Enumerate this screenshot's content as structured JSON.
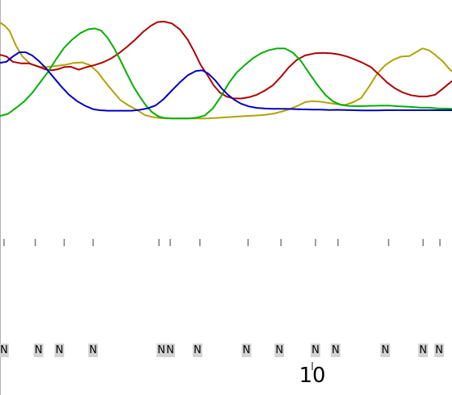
{
  "chart_data": {
    "type": "line",
    "title": "",
    "xlabel": "",
    "ylabel": "",
    "xlim": [
      0,
      563
    ],
    "ylim": [
      0,
      1000
    ],
    "grid": false,
    "legend": "none",
    "series": [
      {
        "color": "#b1a200",
        "points": [
          [
            0,
            1000
          ],
          [
            6,
            985
          ],
          [
            12,
            960
          ],
          [
            20,
            890
          ],
          [
            28,
            840
          ],
          [
            38,
            805
          ],
          [
            48,
            792
          ],
          [
            58,
            790
          ],
          [
            68,
            795
          ],
          [
            80,
            800
          ],
          [
            92,
            810
          ],
          [
            102,
            812
          ],
          [
            112,
            800
          ],
          [
            122,
            765
          ],
          [
            132,
            715
          ],
          [
            142,
            670
          ],
          [
            150,
            635
          ],
          [
            160,
            610
          ],
          [
            170,
            590
          ],
          [
            180,
            565
          ],
          [
            190,
            555
          ],
          [
            200,
            550
          ],
          [
            210,
            548
          ],
          [
            220,
            548
          ],
          [
            230,
            548
          ],
          [
            240,
            548
          ],
          [
            250,
            548
          ],
          [
            260,
            549
          ],
          [
            275,
            552
          ],
          [
            290,
            556
          ],
          [
            305,
            560
          ],
          [
            318,
            562
          ],
          [
            330,
            565
          ],
          [
            342,
            572
          ],
          [
            352,
            582
          ],
          [
            362,
            594
          ],
          [
            372,
            610
          ],
          [
            380,
            625
          ],
          [
            388,
            630
          ],
          [
            398,
            628
          ],
          [
            408,
            622
          ],
          [
            420,
            615
          ],
          [
            430,
            612
          ],
          [
            440,
            625
          ],
          [
            450,
            645
          ],
          [
            460,
            700
          ],
          [
            470,
            760
          ],
          [
            480,
            800
          ],
          [
            490,
            825
          ],
          [
            500,
            840
          ],
          [
            510,
            842
          ],
          [
            518,
            860
          ],
          [
            526,
            878
          ],
          [
            534,
            870
          ],
          [
            542,
            848
          ],
          [
            552,
            815
          ],
          [
            560,
            780
          ],
          [
            563,
            770
          ]
        ]
      },
      {
        "color": "#b00000",
        "points": [
          [
            0,
            848
          ],
          [
            8,
            840
          ],
          [
            16,
            815
          ],
          [
            26,
            808
          ],
          [
            36,
            808
          ],
          [
            46,
            795
          ],
          [
            56,
            780
          ],
          [
            64,
            775
          ],
          [
            72,
            780
          ],
          [
            80,
            790
          ],
          [
            88,
            792
          ],
          [
            98,
            778
          ],
          [
            108,
            790
          ],
          [
            118,
            800
          ],
          [
            128,
            812
          ],
          [
            138,
            830
          ],
          [
            148,
            855
          ],
          [
            158,
            885
          ],
          [
            168,
            918
          ],
          [
            178,
            955
          ],
          [
            188,
            985
          ],
          [
            196,
            1002
          ],
          [
            204,
            1005
          ],
          [
            214,
            996
          ],
          [
            224,
            968
          ],
          [
            234,
            918
          ],
          [
            242,
            862
          ],
          [
            250,
            800
          ],
          [
            258,
            755
          ],
          [
            266,
            705
          ],
          [
            274,
            670
          ],
          [
            282,
            652
          ],
          [
            290,
            643
          ],
          [
            300,
            642
          ],
          [
            310,
            648
          ],
          [
            320,
            660
          ],
          [
            330,
            680
          ],
          [
            340,
            705
          ],
          [
            350,
            745
          ],
          [
            360,
            790
          ],
          [
            370,
            825
          ],
          [
            380,
            845
          ],
          [
            392,
            855
          ],
          [
            402,
            857
          ],
          [
            412,
            855
          ],
          [
            422,
            850
          ],
          [
            432,
            840
          ],
          [
            442,
            826
          ],
          [
            452,
            810
          ],
          [
            462,
            790
          ],
          [
            472,
            755
          ],
          [
            482,
            718
          ],
          [
            492,
            690
          ],
          [
            502,
            670
          ],
          [
            512,
            658
          ],
          [
            522,
            652
          ],
          [
            532,
            652
          ],
          [
            542,
            660
          ],
          [
            552,
            690
          ],
          [
            560,
            715
          ],
          [
            563,
            725
          ]
        ]
      },
      {
        "color": "#00b000",
        "points": [
          [
            0,
            560
          ],
          [
            10,
            570
          ],
          [
            20,
            598
          ],
          [
            30,
            628
          ],
          [
            40,
            668
          ],
          [
            50,
            718
          ],
          [
            60,
            768
          ],
          [
            70,
            828
          ],
          [
            80,
            882
          ],
          [
            90,
            920
          ],
          [
            100,
            950
          ],
          [
            110,
            968
          ],
          [
            118,
            972
          ],
          [
            126,
            962
          ],
          [
            134,
            928
          ],
          [
            142,
            880
          ],
          [
            150,
            822
          ],
          [
            158,
            760
          ],
          [
            166,
            700
          ],
          [
            174,
            652
          ],
          [
            182,
            608
          ],
          [
            190,
            576
          ],
          [
            198,
            557
          ],
          [
            206,
            550
          ],
          [
            215,
            548
          ],
          [
            225,
            548
          ],
          [
            235,
            548
          ],
          [
            245,
            552
          ],
          [
            255,
            562
          ],
          [
            265,
            595
          ],
          [
            275,
            650
          ],
          [
            285,
            715
          ],
          [
            295,
            765
          ],
          [
            305,
            800
          ],
          [
            315,
            832
          ],
          [
            325,
            855
          ],
          [
            335,
            870
          ],
          [
            345,
            878
          ],
          [
            355,
            878
          ],
          [
            365,
            858
          ],
          [
            375,
            818
          ],
          [
            385,
            762
          ],
          [
            395,
            708
          ],
          [
            405,
            660
          ],
          [
            415,
            628
          ],
          [
            425,
            612
          ],
          [
            435,
            607
          ],
          [
            445,
            606
          ],
          [
            455,
            607
          ],
          [
            465,
            608
          ],
          [
            475,
            609
          ],
          [
            485,
            609
          ],
          [
            495,
            606
          ],
          [
            505,
            604
          ],
          [
            515,
            602
          ],
          [
            525,
            599
          ],
          [
            535,
            599
          ],
          [
            545,
            596
          ],
          [
            555,
            595
          ],
          [
            563,
            594
          ]
        ]
      },
      {
        "color": "#0000c0",
        "points": [
          [
            0,
            810
          ],
          [
            8,
            815
          ],
          [
            16,
            840
          ],
          [
            24,
            860
          ],
          [
            32,
            860
          ],
          [
            40,
            845
          ],
          [
            48,
            820
          ],
          [
            56,
            790
          ],
          [
            66,
            745
          ],
          [
            76,
            700
          ],
          [
            86,
            660
          ],
          [
            96,
            630
          ],
          [
            106,
            608
          ],
          [
            116,
            592
          ],
          [
            124,
            587
          ],
          [
            134,
            585
          ],
          [
            144,
            585
          ],
          [
            154,
            585
          ],
          [
            164,
            585
          ],
          [
            174,
            589
          ],
          [
            184,
            596
          ],
          [
            194,
            610
          ],
          [
            204,
            640
          ],
          [
            214,
            680
          ],
          [
            224,
            718
          ],
          [
            234,
            752
          ],
          [
            244,
            772
          ],
          [
            252,
            775
          ],
          [
            260,
            758
          ],
          [
            268,
            728
          ],
          [
            276,
            690
          ],
          [
            284,
            660
          ],
          [
            292,
            636
          ],
          [
            300,
            618
          ],
          [
            310,
            605
          ],
          [
            320,
            598
          ],
          [
            330,
            595
          ],
          [
            340,
            594
          ],
          [
            350,
            594
          ],
          [
            360,
            593
          ],
          [
            370,
            592
          ],
          [
            380,
            591
          ],
          [
            390,
            590
          ],
          [
            400,
            590
          ],
          [
            410,
            588
          ],
          [
            420,
            589
          ],
          [
            430,
            588
          ],
          [
            440,
            587
          ],
          [
            450,
            586
          ],
          [
            460,
            586
          ],
          [
            470,
            586
          ],
          [
            480,
            587
          ],
          [
            490,
            587
          ],
          [
            500,
            587
          ],
          [
            510,
            587
          ],
          [
            520,
            587
          ],
          [
            530,
            587
          ],
          [
            540,
            587
          ],
          [
            550,
            587
          ],
          [
            563,
            587
          ]
        ]
      }
    ],
    "peak_ticks": [
      5,
      44,
      80,
      116,
      198,
      212,
      249,
      309,
      350,
      393,
      421,
      484,
      527,
      548
    ],
    "base_calls": [
      {
        "x": 5,
        "label": "N"
      },
      {
        "x": 48,
        "label": "N"
      },
      {
        "x": 74,
        "label": "N"
      },
      {
        "x": 116,
        "label": "N"
      },
      {
        "x": 201,
        "label": "N"
      },
      {
        "x": 212,
        "label": "N"
      },
      {
        "x": 246,
        "label": "N"
      },
      {
        "x": 307,
        "label": "N"
      },
      {
        "x": 348,
        "label": "N"
      },
      {
        "x": 393,
        "label": "N"
      },
      {
        "x": 418,
        "label": "N"
      },
      {
        "x": 480,
        "label": "N"
      },
      {
        "x": 527,
        "label": "N"
      },
      {
        "x": 547,
        "label": "N"
      }
    ],
    "position_labels": [
      {
        "x": 389,
        "label": "10"
      }
    ]
  }
}
